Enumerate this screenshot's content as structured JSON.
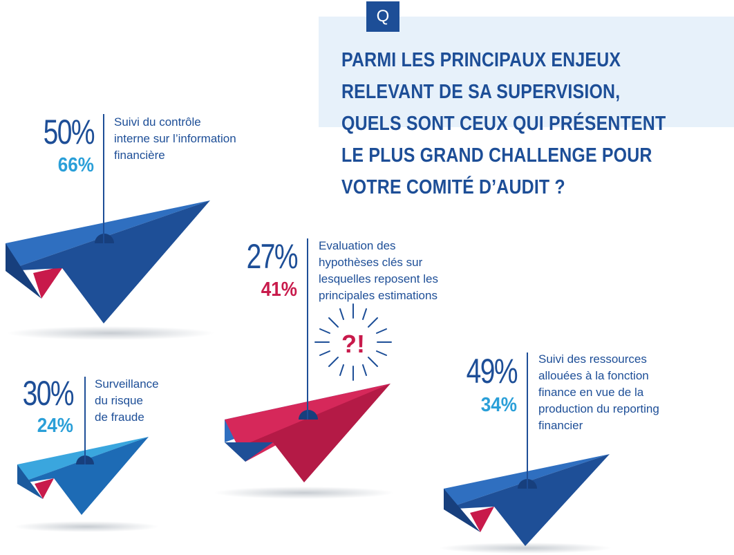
{
  "question": {
    "badge": "Q",
    "lines": [
      "PARMI LES PRINCIPAUX ENJEUX",
      "RELEVANT DE SA SUPERVISION,",
      "QUELS SONT CEUX QUI PRÉSENTENT",
      "LE PLUS GRAND CHALLENGE POUR",
      "VOTRE COMITÉ D’AUDIT ?"
    ]
  },
  "items": [
    {
      "value_a": "50%",
      "value_b": "66%",
      "label_lines": [
        "Suivi du contrôle",
        "interne sur l’information",
        "financière"
      ],
      "accent": "#2a9fd8",
      "plane_color": "#1d5ea8"
    },
    {
      "value_a": "27%",
      "value_b": "41%",
      "label_lines": [
        "Evaluation des",
        "hypothèses clés sur",
        "lesquelles reposent les",
        "principales estimations"
      ],
      "accent": "#c81a4b",
      "plane_color": "#c81a4b",
      "symbol": "?!"
    },
    {
      "value_a": "30%",
      "value_b": "24%",
      "label_lines": [
        "Surveillance",
        "du risque",
        "de fraude"
      ],
      "accent": "#2a9fd8",
      "plane_color": "#2a8fd0"
    },
    {
      "value_a": "49%",
      "value_b": "34%",
      "label_lines": [
        "Suivi des ressources",
        "allouées à la fonction",
        "finance en vue de la",
        "production du reporting",
        "financier"
      ],
      "accent": "#2a9fd8",
      "plane_color": "#1d5ea8"
    }
  ],
  "colors": {
    "navy": "#1d4e97",
    "light_blue": "#2a9fd8",
    "magenta": "#c81a4b",
    "panel": "#e7f1fa"
  }
}
